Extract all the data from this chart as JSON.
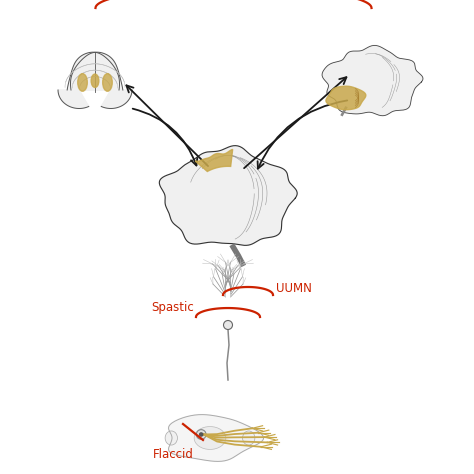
{
  "bg_color": "#ffffff",
  "arrow_color": "#1a1a1a",
  "red_color": "#cc2200",
  "gold_color": "#c8a84b",
  "gray_color": "#aaaaaa",
  "dark_gray": "#555555",
  "light_gray": "#cccccc",
  "uumn_label": "UUMN",
  "spastic_label": "Spastic",
  "flaccid_label": "Flaccid",
  "labels_fontsize": 9
}
